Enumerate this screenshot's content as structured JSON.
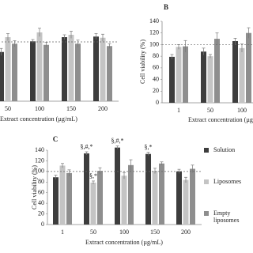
{
  "chart_data": [
    {
      "type": "bar",
      "x_label": "Extract concentration (µg/mL)",
      "categories": [
        "50",
        "100",
        "150",
        "200"
      ],
      "series": [
        {
          "name": "Solution",
          "color": "#3d3d3d",
          "values": [
            83,
            101,
            108,
            109
          ],
          "errors": [
            6,
            3,
            4,
            5
          ]
        },
        {
          "name": "Liposomes",
          "color": "#c4c4c4",
          "values": [
            108,
            116,
            112,
            107
          ],
          "errors": [
            6,
            7,
            6,
            6
          ]
        },
        {
          "name": "Empty liposomes",
          "color": "#8e8e8e",
          "values": [
            97,
            95,
            97,
            93
          ],
          "errors": [
            5,
            4,
            6,
            4
          ]
        }
      ],
      "ylim": [
        0,
        140
      ],
      "reference_line": 100
    },
    {
      "type": "bar",
      "panel": "B",
      "x_label": "Extract concentration (µg/mL)",
      "y_label": "Cell viability (%)",
      "categories": [
        "1",
        "50",
        "100"
      ],
      "series": [
        {
          "name": "Solution",
          "color": "#3d3d3d",
          "values": [
            79,
            88,
            106
          ],
          "errors": [
            4,
            6,
            5
          ]
        },
        {
          "name": "Liposomes",
          "color": "#c4c4c4",
          "values": [
            96,
            80,
            94
          ],
          "errors": [
            4,
            3,
            7
          ]
        },
        {
          "name": "Empty liposomes",
          "color": "#8e8e8e",
          "values": [
            97,
            110,
            120
          ],
          "errors": [
            10,
            10,
            9
          ]
        }
      ],
      "ylim": [
        0,
        140
      ],
      "yticks": [
        0,
        20,
        40,
        60,
        80,
        100,
        120,
        140
      ],
      "reference_line": 100
    },
    {
      "type": "bar",
      "panel": "C",
      "x_label": "Extract concentration (µg/mL)",
      "y_label": "Cell viability (%)",
      "categories": [
        "1",
        "50",
        "100",
        "150",
        "200"
      ],
      "series": [
        {
          "name": "Solution",
          "color": "#3d3d3d",
          "values": [
            89,
            134,
            145,
            133,
            100
          ],
          "errors": [
            4,
            3,
            3,
            3,
            4
          ],
          "annotations": [
            null,
            "§,#,*",
            "§,#,*",
            "§,*",
            null
          ]
        },
        {
          "name": "Liposomes",
          "color": "#c4c4c4",
          "values": [
            111,
            79,
            92,
            101,
            84
          ],
          "errors": [
            4,
            3,
            6,
            5,
            5
          ],
          "annotations": [
            null,
            "§,*",
            null,
            null,
            null
          ]
        },
        {
          "name": "Empty liposomes",
          "color": "#8e8e8e",
          "values": [
            97,
            101,
            112,
            115,
            105
          ],
          "errors": [
            6,
            6,
            10,
            3,
            7
          ]
        }
      ],
      "ylim": [
        0,
        140
      ],
      "yticks": [
        0,
        20,
        40,
        60,
        80,
        100,
        120,
        140
      ],
      "reference_line": 100,
      "legend": true
    }
  ]
}
